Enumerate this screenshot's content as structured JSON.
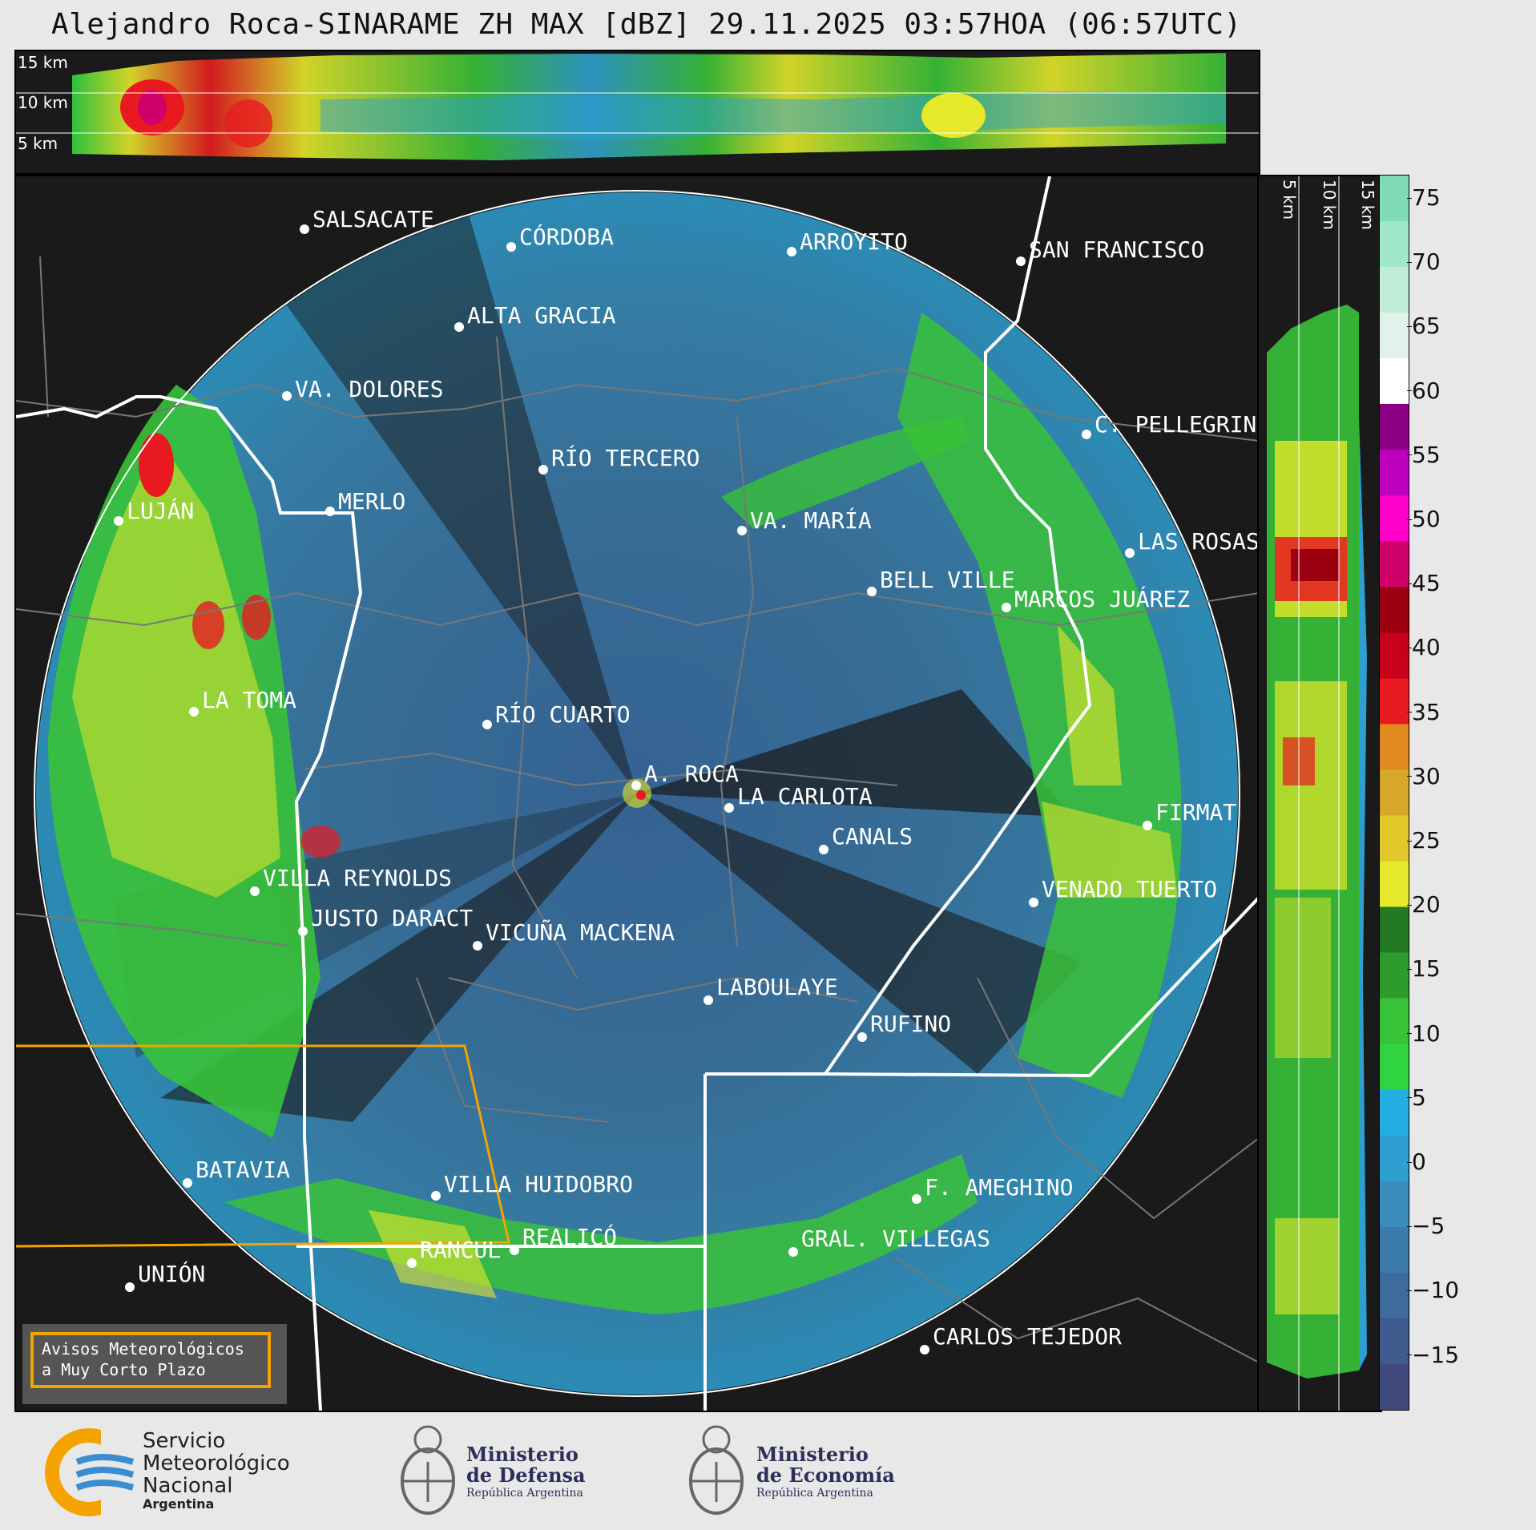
{
  "title": "Alejandro Roca-SINARAME ZH MAX [dBZ] 29.11.2025 03:57HOA (06:57UTC)",
  "top_panel": {
    "altitude_labels": [
      "15 km",
      "10 km",
      "5 km"
    ]
  },
  "side_panel": {
    "altitude_labels": [
      "5 km",
      "10 km",
      "15 km"
    ]
  },
  "colorbar": {
    "unit": "dBZ",
    "ticks": [
      "75",
      "70",
      "65",
      "60",
      "55",
      "50",
      "45",
      "40",
      "35",
      "30",
      "25",
      "20",
      "15",
      "10",
      "5",
      "0",
      "−5",
      "−10",
      "−15"
    ],
    "colors": [
      "#414a7c",
      "#3f5a8c",
      "#3d6b9c",
      "#3b7cac",
      "#3a8dbc",
      "#2e9fd0",
      "#22aee0",
      "#2fd440",
      "#38c238",
      "#2d9c2d",
      "#247a24",
      "#e6e82a",
      "#e0c82a",
      "#d8a82a",
      "#e08a1f",
      "#e81a20",
      "#c8001a",
      "#9c0010",
      "#d0006a",
      "#ff00c8",
      "#c000c0",
      "#8a0080",
      "#ffffff",
      "#e0f2ea",
      "#c0ecd8",
      "#a0e6c8",
      "#80dcb8"
    ]
  },
  "cities": [
    {
      "name": "SALSACATE"
    },
    {
      "name": "CÓRDOBA"
    },
    {
      "name": "ARROYITO"
    },
    {
      "name": "SAN FRANCISCO"
    },
    {
      "name": "ALTA GRACIA"
    },
    {
      "name": "VA. DOLORES"
    },
    {
      "name": "C. PELLEGRINI"
    },
    {
      "name": "RÍO TERCERO"
    },
    {
      "name": "MERLO"
    },
    {
      "name": "LUJÁN"
    },
    {
      "name": "VA. MARÍA"
    },
    {
      "name": "LAS ROSAS"
    },
    {
      "name": "BELL VILLE"
    },
    {
      "name": "MARCOS JUÁREZ"
    },
    {
      "name": "LA TOMA"
    },
    {
      "name": "RÍO CUARTO"
    },
    {
      "name": "A. ROCA"
    },
    {
      "name": "LA CARLOTA"
    },
    {
      "name": "FIRMAT"
    },
    {
      "name": "CANALS"
    },
    {
      "name": "VILLA REYNOLDS"
    },
    {
      "name": "VENADO TUERTO"
    },
    {
      "name": "JUSTO DARACT"
    },
    {
      "name": "VICUÑA MACKENA"
    },
    {
      "name": "LABOULAYE"
    },
    {
      "name": "RUFINO"
    },
    {
      "name": "BATAVIA"
    },
    {
      "name": "VILLA HUIDOBRO"
    },
    {
      "name": "F. AMEGHINO"
    },
    {
      "name": "REALICÓ"
    },
    {
      "name": "RANCUL"
    },
    {
      "name": "GRAL. VILLEGAS"
    },
    {
      "name": "UNIÓN"
    },
    {
      "name": "CARLOS TEJEDOR"
    }
  ],
  "warning_box": {
    "line1": "Avisos Meteorológicos",
    "line2": "a Muy Corto Plazo",
    "border_color": "#f5a300"
  },
  "logos": {
    "smn_line1": "Servicio",
    "smn_line2": "Meteorológico",
    "smn_line3": "Nacional",
    "smn_line4": "Argentina",
    "defensa_line1": "Ministerio",
    "defensa_line2": "de Defensa",
    "defensa_line3": "República Argentina",
    "economia_line1": "Ministerio",
    "economia_line2": "de Economía",
    "economia_line3": "República Argentina"
  }
}
